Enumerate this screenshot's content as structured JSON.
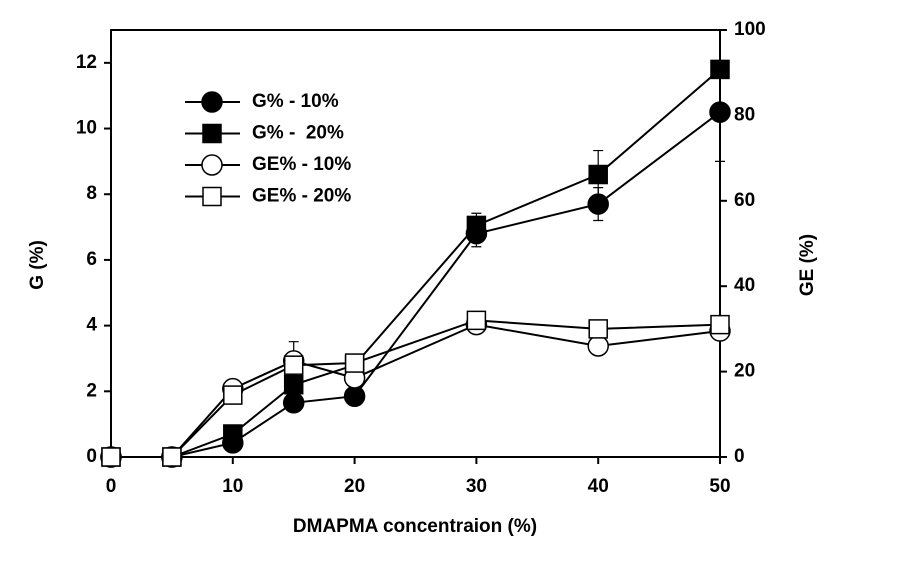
{
  "chart_data": {
    "type": "line",
    "xlabel": "DMAPMA concentraion (%)",
    "ylabel": "G (%)",
    "y2label": "GE (%)",
    "x": [
      0,
      5,
      10,
      15,
      20,
      30,
      40,
      50
    ],
    "xlim": [
      0,
      50
    ],
    "xticks": [
      0,
      10,
      20,
      30,
      40,
      50
    ],
    "ylim": [
      0,
      13
    ],
    "yticks": [
      0,
      2,
      4,
      6,
      8,
      10,
      12
    ],
    "y2lim": [
      0,
      100
    ],
    "y2ticks": [
      0,
      20,
      40,
      60,
      80,
      100
    ],
    "legend": "upper left",
    "series": [
      {
        "name": "G% - 10%",
        "color": "#000000",
        "fill": "#000000",
        "marker": "circle",
        "axis": "y",
        "values": [
          0,
          0,
          0.43,
          1.65,
          1.85,
          6.8,
          7.7,
          10.5
        ],
        "errors": [
          0,
          0,
          0,
          0,
          0,
          0.4,
          0.5,
          1.5
        ]
      },
      {
        "name": "G% -  20%",
        "color": "#000000",
        "fill": "#000000",
        "marker": "square",
        "axis": "y",
        "values": [
          0,
          0,
          0.7,
          2.2,
          2.8,
          7.05,
          8.6,
          11.8
        ],
        "errors": [
          0,
          0,
          0,
          0,
          0,
          0.37,
          0.73,
          0
        ]
      },
      {
        "name": "GE% - 10%",
        "color": "#000000",
        "fill": "#ffffff",
        "marker": "circle",
        "axis": "y2",
        "values": [
          0,
          0,
          16,
          22.5,
          18.5,
          31,
          26,
          29.5
        ],
        "errors": [
          0,
          0,
          0,
          4.5,
          1.5,
          0,
          0,
          0
        ]
      },
      {
        "name": "GE% - 20%",
        "color": "#000000",
        "fill": "#ffffff",
        "marker": "square",
        "axis": "y2",
        "values": [
          0,
          0,
          14.5,
          21.5,
          22,
          32,
          30,
          31
        ],
        "errors": [
          0,
          0,
          0,
          0,
          0,
          0,
          0,
          0
        ]
      }
    ]
  }
}
